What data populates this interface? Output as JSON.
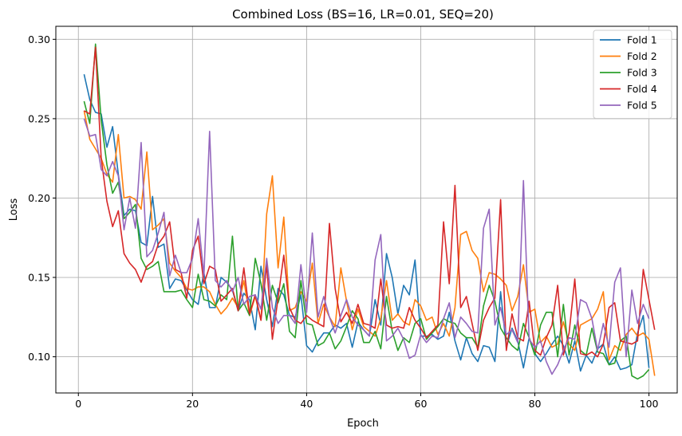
{
  "chart_data": {
    "type": "line",
    "title": "Combined Loss (BS=16, LR=0.01, SEQ=20)",
    "xlabel": "Epoch",
    "ylabel": "Loss",
    "xlim": [
      -3.95,
      104.95
    ],
    "ylim": [
      0.0772,
      0.3082
    ],
    "xticks": [
      0,
      20,
      40,
      60,
      80,
      100
    ],
    "yticks": [
      0.1,
      0.15,
      0.2,
      0.25,
      0.3
    ],
    "ytick_labels": [
      "0.10",
      "0.15",
      "0.20",
      "0.25",
      "0.30"
    ],
    "grid": true,
    "legend_position": "top-right",
    "series": [
      {
        "name": "Fold 1",
        "color": "#1f77b4",
        "values": [
          0.278,
          0.262,
          0.254,
          0.253,
          0.232,
          0.245,
          0.215,
          0.189,
          0.193,
          0.192,
          0.172,
          0.17,
          0.201,
          0.169,
          0.171,
          0.143,
          0.149,
          0.148,
          0.142,
          0.136,
          0.133,
          0.153,
          0.131,
          0.131,
          0.15,
          0.147,
          0.142,
          0.129,
          0.14,
          0.136,
          0.117,
          0.157,
          0.136,
          0.119,
          0.143,
          0.139,
          0.126,
          0.125,
          0.139,
          0.107,
          0.103,
          0.11,
          0.115,
          0.115,
          0.12,
          0.118,
          0.121,
          0.106,
          0.122,
          0.117,
          0.113,
          0.136,
          0.12,
          0.165,
          0.15,
          0.127,
          0.145,
          0.139,
          0.161,
          0.113,
          0.113,
          0.114,
          0.111,
          0.113,
          0.128,
          0.11,
          0.098,
          0.112,
          0.102,
          0.097,
          0.107,
          0.106,
          0.097,
          0.141,
          0.106,
          0.118,
          0.11,
          0.093,
          0.112,
          0.102,
          0.097,
          0.102,
          0.108,
          0.113,
          0.107,
          0.096,
          0.11,
          0.091,
          0.101,
          0.096,
          0.105,
          0.108,
          0.095,
          0.1,
          0.092,
          0.093,
          0.095,
          0.115,
          0.126,
          0.093
        ]
      },
      {
        "name": "Fold 2",
        "color": "#ff7f0e",
        "values": [
          0.255,
          0.237,
          0.231,
          0.225,
          0.215,
          0.21,
          0.24,
          0.2,
          0.201,
          0.199,
          0.193,
          0.229,
          0.18,
          0.183,
          0.187,
          0.159,
          0.154,
          0.15,
          0.143,
          0.142,
          0.144,
          0.144,
          0.141,
          0.133,
          0.127,
          0.131,
          0.137,
          0.131,
          0.148,
          0.126,
          0.138,
          0.123,
          0.19,
          0.214,
          0.156,
          0.188,
          0.129,
          0.131,
          0.141,
          0.135,
          0.159,
          0.121,
          0.133,
          0.125,
          0.119,
          0.156,
          0.135,
          0.117,
          0.13,
          0.119,
          0.116,
          0.113,
          0.124,
          0.148,
          0.123,
          0.127,
          0.122,
          0.12,
          0.136,
          0.132,
          0.123,
          0.125,
          0.114,
          0.121,
          0.113,
          0.131,
          0.177,
          0.179,
          0.167,
          0.162,
          0.141,
          0.153,
          0.152,
          0.149,
          0.145,
          0.129,
          0.138,
          0.158,
          0.128,
          0.13,
          0.109,
          0.113,
          0.106,
          0.108,
          0.122,
          0.108,
          0.104,
          0.12,
          0.122,
          0.124,
          0.13,
          0.141,
          0.098,
          0.107,
          0.104,
          0.114,
          0.118,
          0.113,
          0.115,
          0.111,
          0.088
        ]
      },
      {
        "name": "Fold 3",
        "color": "#2ca02c",
        "values": [
          0.261,
          0.247,
          0.297,
          0.249,
          0.221,
          0.203,
          0.21,
          0.187,
          0.191,
          0.196,
          0.162,
          0.155,
          0.157,
          0.16,
          0.141,
          0.141,
          0.141,
          0.142,
          0.136,
          0.131,
          0.152,
          0.136,
          0.135,
          0.132,
          0.139,
          0.136,
          0.176,
          0.129,
          0.134,
          0.126,
          0.162,
          0.146,
          0.123,
          0.145,
          0.134,
          0.146,
          0.116,
          0.112,
          0.148,
          0.121,
          0.12,
          0.107,
          0.109,
          0.115,
          0.105,
          0.11,
          0.119,
          0.129,
          0.124,
          0.109,
          0.109,
          0.116,
          0.105,
          0.138,
          0.116,
          0.104,
          0.112,
          0.109,
          0.121,
          0.124,
          0.111,
          0.115,
          0.119,
          0.124,
          0.122,
          0.121,
          0.115,
          0.112,
          0.112,
          0.106,
          0.132,
          0.145,
          0.135,
          0.118,
          0.112,
          0.107,
          0.104,
          0.121,
          0.112,
          0.101,
          0.12,
          0.128,
          0.128,
          0.1,
          0.133,
          0.101,
          0.12,
          0.104,
          0.101,
          0.118,
          0.103,
          0.102,
          0.095,
          0.096,
          0.11,
          0.113,
          0.088,
          0.086,
          0.088,
          0.092
        ]
      },
      {
        "name": "Fold 4",
        "color": "#d62728",
        "values": [
          0.255,
          0.253,
          0.295,
          0.225,
          0.198,
          0.182,
          0.192,
          0.165,
          0.159,
          0.155,
          0.147,
          0.157,
          0.16,
          0.171,
          0.176,
          0.185,
          0.155,
          0.153,
          0.137,
          0.167,
          0.176,
          0.146,
          0.157,
          0.155,
          0.135,
          0.139,
          0.143,
          0.129,
          0.156,
          0.127,
          0.139,
          0.123,
          0.158,
          0.111,
          0.137,
          0.164,
          0.131,
          0.123,
          0.121,
          0.126,
          0.123,
          0.121,
          0.119,
          0.184,
          0.143,
          0.122,
          0.128,
          0.121,
          0.133,
          0.121,
          0.12,
          0.118,
          0.149,
          0.12,
          0.118,
          0.119,
          0.118,
          0.131,
          0.123,
          0.118,
          0.112,
          0.116,
          0.12,
          0.185,
          0.146,
          0.208,
          0.131,
          0.138,
          0.121,
          0.104,
          0.123,
          0.131,
          0.137,
          0.199,
          0.104,
          0.127,
          0.112,
          0.11,
          0.135,
          0.104,
          0.101,
          0.112,
          0.12,
          0.145,
          0.101,
          0.115,
          0.149,
          0.102,
          0.101,
          0.103,
          0.1,
          0.108,
          0.131,
          0.134,
          0.11,
          0.109,
          0.108,
          0.11,
          0.155,
          0.136,
          0.117
        ]
      },
      {
        "name": "Fold 5",
        "color": "#9467bd",
        "values": [
          0.25,
          0.239,
          0.24,
          0.218,
          0.214,
          0.223,
          0.214,
          0.18,
          0.2,
          0.181,
          0.235,
          0.163,
          0.167,
          0.178,
          0.191,
          0.151,
          0.164,
          0.153,
          0.153,
          0.162,
          0.187,
          0.151,
          0.242,
          0.148,
          0.144,
          0.148,
          0.141,
          0.15,
          0.133,
          0.138,
          0.139,
          0.13,
          0.162,
          0.131,
          0.121,
          0.126,
          0.126,
          0.121,
          0.158,
          0.128,
          0.178,
          0.125,
          0.138,
          0.125,
          0.115,
          0.126,
          0.136,
          0.125,
          0.12,
          0.117,
          0.113,
          0.161,
          0.177,
          0.11,
          0.113,
          0.118,
          0.111,
          0.099,
          0.101,
          0.114,
          0.109,
          0.113,
          0.112,
          0.124,
          0.134,
          0.112,
          0.125,
          0.121,
          0.116,
          0.115,
          0.181,
          0.193,
          0.12,
          0.131,
          0.114,
          0.117,
          0.109,
          0.211,
          0.111,
          0.106,
          0.11,
          0.097,
          0.089,
          0.095,
          0.104,
          0.112,
          0.111,
          0.136,
          0.134,
          0.124,
          0.104,
          0.121,
          0.106,
          0.147,
          0.156,
          0.1,
          0.142,
          0.121,
          0.133,
          0.124
        ]
      }
    ]
  }
}
